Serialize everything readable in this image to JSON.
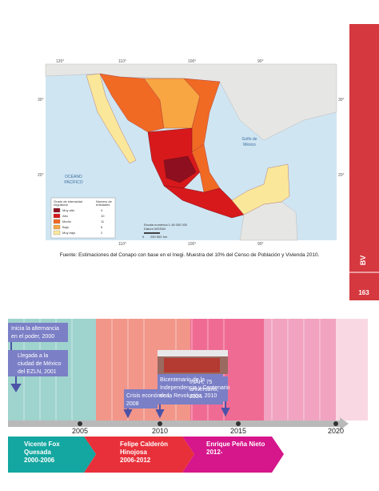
{
  "tab": {
    "label": "BV",
    "page_number": "163"
  },
  "map": {
    "longitudes_top": [
      "120°",
      "110°",
      "100°",
      "90°"
    ],
    "longitudes_bottom": [
      "110°",
      "100°",
      "90°"
    ],
    "latitudes_left": [
      "30°",
      "20°"
    ],
    "latitudes_right": [
      "30°",
      "20°"
    ],
    "gulf_label": [
      "Golfo de",
      "México"
    ],
    "ocean_label": [
      "OCÉANO",
      "PACÍFICO"
    ],
    "legend": {
      "title": [
        "Grado de intensidad",
        "migratoria"
      ],
      "count_title": [
        "Número de",
        "entidades"
      ],
      "items": [
        {
          "name": "Muy alto",
          "count": "4",
          "color": "#8e1020"
        },
        {
          "name": "Alto",
          "count": "10",
          "color": "#d7191c"
        },
        {
          "name": "Medio",
          "count": "11",
          "color": "#f06a24"
        },
        {
          "name": "Bajo",
          "count": "5",
          "color": "#f7a642"
        },
        {
          "name": "Muy bajo",
          "count": "2",
          "color": "#fbe79a"
        }
      ]
    },
    "scale": [
      "Escala numérica 1:18 000 000",
      "Datum WGS84",
      "0",
      "250 500",
      "km"
    ],
    "caption": "Fuente: Estimaciones del Conapo con base en el Inegi. Muestra del 10% del Censo de Población y Vivienda 2010."
  },
  "timeline": {
    "years": [
      "2005",
      "2010",
      "2015",
      "2020"
    ],
    "events": [
      {
        "lines": [
          "Inicia la alternancia",
          "en el poder, 2000"
        ]
      },
      {
        "lines": [
          "Llegada a la",
          "ciudad de México",
          "del EZLN, 2001"
        ]
      },
      {
        "lines": [
          "Crisis económica,",
          "2008"
        ]
      },
      {
        "lines": [
          "Bicentenario de la",
          "Independencia y Centenario",
          "de la Revolución, 2010"
        ]
      },
      {
        "lines": [
          "INAH, 75",
          "aniversario,",
          "2014"
        ]
      }
    ],
    "presidents": [
      {
        "lines": [
          "Vicente Fox",
          "Quesada",
          "2000-2006"
        ]
      },
      {
        "lines": [
          "Felipe Calderón",
          "Hinojosa",
          "2006-2012"
        ]
      },
      {
        "lines": [
          "Enrique Peña Nieto",
          "2012-"
        ]
      }
    ]
  }
}
